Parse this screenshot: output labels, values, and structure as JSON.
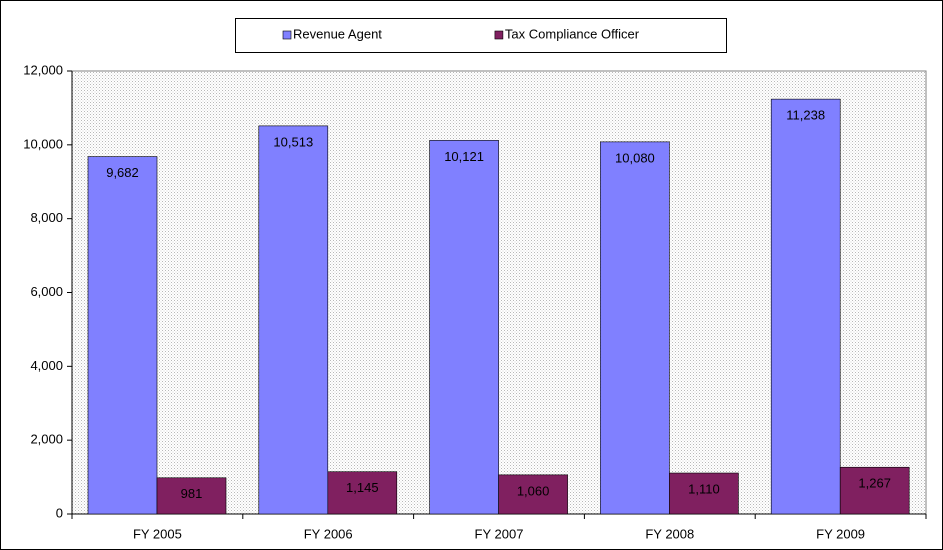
{
  "chart_data": {
    "type": "bar",
    "categories": [
      "FY 2005",
      "FY 2006",
      "FY 2007",
      "FY 2008",
      "FY 2009"
    ],
    "series": [
      {
        "name": "Revenue Agent",
        "color": "#8080ff",
        "values": [
          9682,
          10513,
          10121,
          10080,
          11238
        ],
        "value_labels": [
          "9,682",
          "10,513",
          "10,121",
          "10,080",
          "11,238"
        ]
      },
      {
        "name": "Tax Compliance Officer",
        "color": "#802060",
        "values": [
          981,
          1145,
          1060,
          1110,
          1267
        ],
        "value_labels": [
          "981",
          "1,145",
          "1,060",
          "1,110",
          "1,267"
        ]
      }
    ],
    "ylim": [
      0,
      12000
    ],
    "yticks": [
      0,
      {
        "value": 2000,
        "label": "2,000"
      },
      {
        "value": 4000,
        "label": "4,000"
      },
      {
        "value": 6000,
        "label": "6,000"
      },
      {
        "value": 8000,
        "label": "8,000"
      },
      {
        "value": 10000,
        "label": "10,000"
      },
      {
        "value": 12000,
        "label": "12,000"
      }
    ],
    "legend": "top"
  }
}
